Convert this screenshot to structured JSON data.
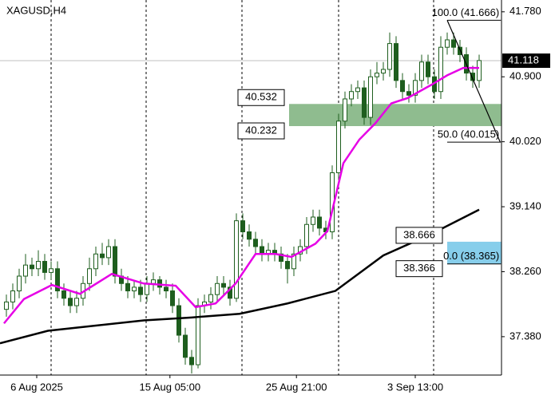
{
  "chart_data": {
    "type": "candlestick",
    "title": "XAGUSD,H4",
    "x": [
      1,
      2,
      3,
      4,
      5,
      6,
      7,
      8,
      9,
      10,
      11,
      12,
      13,
      14,
      15,
      16,
      17,
      18,
      19,
      20,
      21,
      22,
      23,
      24,
      25,
      26,
      27,
      28,
      29,
      30,
      31,
      32,
      33,
      34,
      35,
      36,
      37,
      38,
      39,
      40,
      41,
      42,
      43,
      44,
      45,
      46,
      47,
      48,
      49,
      50,
      51,
      52,
      53,
      54,
      55,
      56,
      57,
      58,
      59,
      60,
      61,
      62,
      63,
      64,
      65,
      66,
      67,
      68,
      69,
      70,
      71,
      72,
      73,
      74,
      75
    ],
    "open": [
      37.75,
      37.85,
      38.0,
      38.2,
      38.35,
      38.3,
      38.4,
      38.25,
      38.3,
      38.0,
      37.9,
      37.8,
      37.9,
      38.1,
      38.3,
      38.5,
      38.45,
      38.6,
      38.2,
      38.1,
      38.0,
      38.05,
      37.95,
      38.1,
      38.15,
      38.05,
      38.0,
      37.8,
      37.4,
      37.1,
      37.0,
      37.8,
      37.85,
      37.95,
      38.1,
      38.05,
      37.9,
      38.95,
      38.8,
      38.7,
      38.6,
      38.5,
      38.55,
      38.5,
      38.4,
      38.3,
      38.5,
      38.6,
      38.9,
      39.0,
      38.85,
      38.8,
      39.6,
      40.3,
      40.6,
      40.7,
      40.75,
      40.35,
      40.9,
      40.95,
      41.0,
      41.35,
      40.85,
      40.7,
      40.65,
      40.85,
      41.1,
      40.9,
      40.7,
      41.3,
      41.4,
      41.3,
      41.2,
      40.95,
      40.85
    ],
    "high": [
      37.95,
      38.1,
      38.3,
      38.5,
      38.45,
      38.55,
      38.5,
      38.4,
      38.4,
      38.1,
      38.0,
      38.0,
      38.2,
      38.45,
      38.6,
      38.65,
      38.7,
      38.7,
      38.3,
      38.2,
      38.15,
      38.15,
      38.2,
      38.25,
      38.2,
      38.15,
      38.1,
      37.9,
      37.5,
      37.2,
      37.9,
      37.95,
      38.05,
      38.2,
      38.2,
      38.15,
      39.05,
      39.05,
      38.9,
      38.8,
      38.7,
      38.65,
      38.65,
      38.6,
      38.5,
      38.6,
      38.7,
      39.0,
      39.1,
      39.1,
      38.95,
      39.7,
      40.4,
      40.7,
      40.8,
      40.85,
      40.85,
      41.0,
      41.1,
      41.1,
      41.5,
      41.45,
      40.95,
      40.8,
      40.95,
      41.2,
      41.2,
      41.0,
      41.45,
      41.5,
      41.5,
      41.4,
      41.3,
      41.05,
      41.2
    ],
    "low": [
      37.65,
      37.75,
      37.9,
      38.1,
      38.2,
      38.2,
      38.15,
      38.15,
      37.9,
      37.8,
      37.7,
      37.7,
      37.8,
      38.0,
      38.2,
      38.35,
      38.35,
      38.1,
      38.0,
      37.9,
      37.9,
      37.85,
      37.85,
      38.0,
      37.95,
      37.9,
      37.7,
      37.3,
      37.0,
      36.88,
      36.95,
      37.7,
      37.75,
      37.85,
      37.95,
      37.8,
      37.85,
      38.7,
      38.6,
      38.5,
      38.4,
      38.4,
      38.4,
      38.3,
      38.1,
      38.2,
      38.4,
      38.5,
      38.8,
      38.75,
      38.7,
      38.7,
      39.5,
      40.2,
      40.5,
      40.6,
      40.25,
      40.25,
      40.8,
      40.85,
      40.9,
      40.75,
      40.6,
      40.55,
      40.55,
      40.75,
      40.8,
      40.6,
      40.6,
      41.2,
      41.2,
      41.1,
      40.85,
      40.75,
      40.75
    ],
    "close": [
      37.85,
      38.0,
      38.2,
      38.35,
      38.3,
      38.4,
      38.25,
      38.3,
      38.0,
      37.9,
      37.8,
      37.9,
      38.1,
      38.3,
      38.5,
      38.45,
      38.6,
      38.2,
      38.1,
      38.0,
      38.05,
      37.95,
      38.1,
      38.15,
      38.05,
      38.0,
      37.8,
      37.4,
      37.1,
      37.0,
      37.8,
      37.85,
      37.95,
      38.1,
      38.05,
      37.9,
      38.95,
      38.8,
      38.7,
      38.6,
      38.5,
      38.55,
      38.5,
      38.4,
      38.3,
      38.5,
      38.6,
      38.9,
      39.0,
      38.85,
      38.8,
      39.6,
      40.3,
      40.6,
      40.7,
      40.75,
      40.35,
      40.9,
      40.95,
      41.0,
      41.35,
      40.85,
      40.7,
      40.65,
      40.85,
      41.1,
      40.9,
      40.7,
      41.3,
      41.4,
      41.3,
      41.2,
      40.95,
      40.85,
      41.12
    ],
    "up_color": "#ffffff",
    "down_color": "#1e5e1e",
    "wick_color": "#1e5e1e",
    "moving_averages": [
      {
        "color": "#e600e6",
        "x": [
          0.625,
          3.75,
          8.125,
          12.5,
          17.5,
          22.5,
          27.5,
          30.625,
          33.75,
          36.875,
          40,
          43.125,
          45.625,
          49.375,
          51.25,
          53.75,
          56.25,
          58.75,
          61.25,
          63.75,
          67.5,
          70,
          72.5,
          75
        ],
        "values": [
          37.56,
          37.89,
          38.08,
          37.96,
          38.23,
          38.1,
          38.07,
          37.78,
          37.83,
          38.1,
          38.5,
          38.5,
          38.46,
          38.64,
          38.81,
          39.73,
          40.05,
          40.27,
          40.54,
          40.61,
          40.79,
          40.92,
          41.02,
          41.02
        ]
      },
      {
        "color": "#000000",
        "x": [
          0,
          7.5,
          15,
          22.5,
          30,
          37.5,
          45,
          52.5,
          60,
          67.5,
          75
        ],
        "values": [
          37.29,
          37.46,
          37.53,
          37.6,
          37.64,
          37.69,
          37.83,
          38.0,
          38.48,
          38.77,
          39.1
        ]
      }
    ],
    "zones": [
      {
        "top": 40.532,
        "bottom": 40.232,
        "x_start": 45.25,
        "color": "#8fbc8f"
      },
      {
        "top": 38.666,
        "bottom": 38.366,
        "x_start": 70,
        "color": "#87ceeb"
      }
    ],
    "fibonacci": {
      "x_start": 70,
      "x_end": 78.4,
      "levels": [
        {
          "value": 41.666,
          "label": "100.0 (41.666)"
        },
        {
          "value": 40.015,
          "label": "50.0 (40.015)"
        },
        {
          "value": 38.365,
          "label": "0.0 (38.365)"
        }
      ],
      "line": {
        "x": [
          70,
          78.3
        ],
        "values": [
          41.666,
          40.015
        ]
      }
    },
    "current_price": 41.118,
    "xlim": [
      0,
      78.5
    ],
    "ylim": [
      36.86,
      41.94
    ],
    "yticks": [
      {
        "value": 41.78,
        "label": "41.780"
      },
      {
        "value": 40.9,
        "label": "40.900"
      },
      {
        "value": 40.02,
        "label": "40.020"
      },
      {
        "value": 39.14,
        "label": "39.140"
      },
      {
        "value": 38.26,
        "label": "38.260"
      },
      {
        "value": 37.38,
        "label": "37.380"
      }
    ],
    "xticks": [
      {
        "value": 5.75,
        "label": "6 Aug 2025"
      },
      {
        "value": 26.6,
        "label": "15 Aug 05:00"
      },
      {
        "value": 46.4,
        "label": "25 Aug 21:00"
      },
      {
        "value": 65,
        "label": "3 Sep 13:00"
      }
    ],
    "xgrid": [
      8,
      22.875,
      37.875,
      53,
      67.875
    ]
  }
}
